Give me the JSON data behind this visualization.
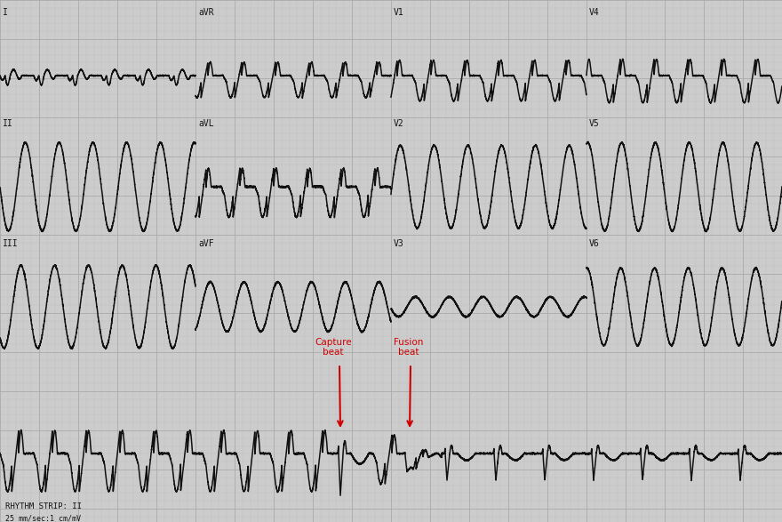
{
  "background_color": "#cccccc",
  "grid_minor_color": "#bbbbbb",
  "grid_major_color": "#aaaaaa",
  "ecg_color": "#111111",
  "annotation_color": "#cc0000",
  "fig_width": 8.8,
  "fig_height": 5.87,
  "dpi": 100,
  "leads_row1": [
    "I",
    "aVR",
    "V1",
    "V4"
  ],
  "leads_row2": [
    "II",
    "aVL",
    "V2",
    "V5"
  ],
  "leads_row3": [
    "III",
    "aVF",
    "V3",
    "V6"
  ],
  "rhythm_strip_label": "RHYTHM STRIP: II",
  "rhythm_strip_sub": "25 mm/sec:1 cm/mV",
  "capture_beat_label": "Capture\nbeat",
  "fusion_beat_label": "Fusion\nbeat",
  "vt_period": 0.38
}
